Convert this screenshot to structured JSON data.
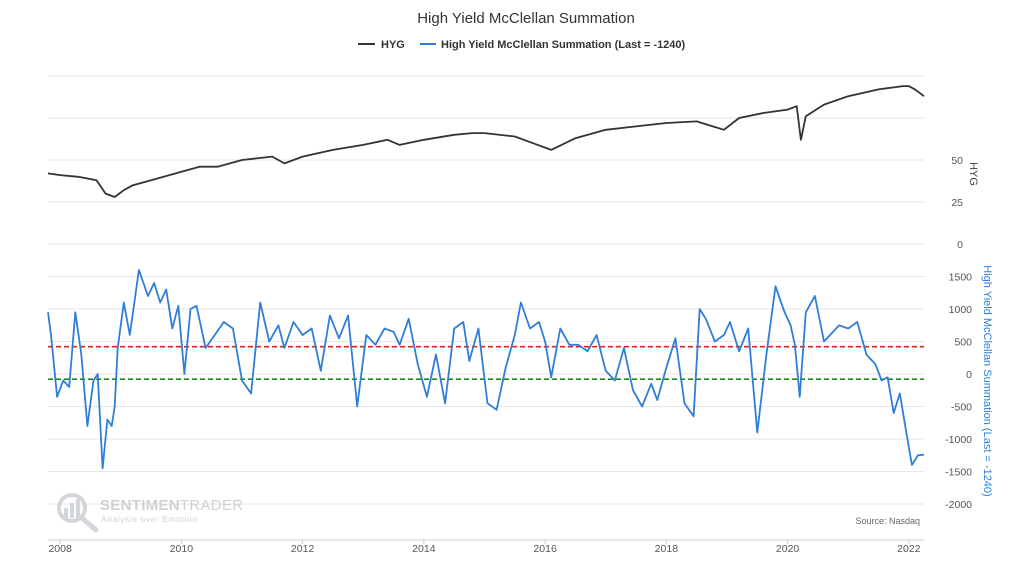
{
  "chart_data": {
    "type": "line",
    "title": "High Yield McClellan Summation",
    "source": "Source: Nasdaq",
    "watermark": {
      "brand_a": "SENTIMEN",
      "brand_b": "TRADER",
      "tagline": "Analysis over Emotion"
    },
    "x_range": [
      2007.8,
      2022.25
    ],
    "x_ticks": [
      {
        "value": 2008,
        "label": "2008"
      },
      {
        "value": 2010,
        "label": "2010"
      },
      {
        "value": 2012,
        "label": "2012"
      },
      {
        "value": 2014,
        "label": "2014"
      },
      {
        "value": 2016,
        "label": "2016"
      },
      {
        "value": 2018,
        "label": "2018"
      },
      {
        "value": 2020,
        "label": "2020"
      },
      {
        "value": 2022,
        "label": "2022"
      }
    ],
    "upper_axis": {
      "title": "HYG",
      "ticks": [
        {
          "value": 0,
          "label": "0"
        },
        {
          "value": 25,
          "label": "25"
        },
        {
          "value": 50,
          "label": "50"
        }
      ],
      "color": "#444444"
    },
    "lower_axis": {
      "title": "High Yield McClellan Summation (Last = -1240)",
      "ticks": [
        {
          "value": 1500,
          "label": "1500"
        },
        {
          "value": 1000,
          "label": "1000"
        },
        {
          "value": 500,
          "label": "500"
        },
        {
          "value": 0,
          "label": "0"
        },
        {
          "value": -500,
          "label": "-500"
        },
        {
          "value": -1000,
          "label": "-1000"
        },
        {
          "value": -1500,
          "label": "-1500"
        },
        {
          "value": -2000,
          "label": "-2000"
        }
      ],
      "color": "#2f7ed8"
    },
    "reference_lines": [
      {
        "value": 420,
        "color": "#e02020",
        "style": "dashed"
      },
      {
        "value": -80,
        "color": "#1a8a1a",
        "style": "dashed"
      }
    ],
    "series": [
      {
        "name": "HYG",
        "color": "#333333",
        "axis": "upper",
        "x": [
          2007.8,
          2008.0,
          2008.3,
          2008.6,
          2008.75,
          2008.9,
          2009.05,
          2009.2,
          2009.5,
          2010.0,
          2010.3,
          2010.6,
          2011.0,
          2011.5,
          2011.7,
          2012.0,
          2012.5,
          2013.0,
          2013.4,
          2013.6,
          2014.0,
          2014.5,
          2014.8,
          2015.0,
          2015.5,
          2015.8,
          2016.1,
          2016.5,
          2017.0,
          2017.5,
          2018.0,
          2018.5,
          2018.95,
          2019.2,
          2019.6,
          2020.0,
          2020.15,
          2020.22,
          2020.3,
          2020.6,
          2021.0,
          2021.5,
          2021.9,
          2022.0,
          2022.1,
          2022.25
        ],
        "values": [
          42,
          41,
          40,
          38,
          30,
          28,
          32,
          35,
          38,
          43,
          46,
          46,
          50,
          52,
          48,
          52,
          56,
          59,
          62,
          59,
          62,
          65,
          66,
          66,
          64,
          60,
          56,
          63,
          68,
          70,
          72,
          73,
          68,
          75,
          78,
          80,
          82,
          62,
          76,
          83,
          88,
          92,
          94,
          94,
          92,
          88
        ]
      },
      {
        "name": "High Yield McClellan Summation (Last = -1240)",
        "color": "#2f7ed8",
        "axis": "lower",
        "x": [
          2007.8,
          2007.85,
          2007.95,
          2008.05,
          2008.15,
          2008.25,
          2008.35,
          2008.45,
          2008.55,
          2008.62,
          2008.7,
          2008.78,
          2008.85,
          2008.9,
          2008.95,
          2009.05,
          2009.15,
          2009.3,
          2009.45,
          2009.55,
          2009.65,
          2009.75,
          2009.85,
          2009.95,
          2010.05,
          2010.15,
          2010.25,
          2010.4,
          2010.55,
          2010.7,
          2010.85,
          2011.0,
          2011.15,
          2011.3,
          2011.45,
          2011.6,
          2011.7,
          2011.85,
          2012.0,
          2012.15,
          2012.3,
          2012.45,
          2012.6,
          2012.75,
          2012.9,
          2013.05,
          2013.2,
          2013.35,
          2013.5,
          2013.6,
          2013.75,
          2013.9,
          2014.05,
          2014.2,
          2014.35,
          2014.5,
          2014.65,
          2014.75,
          2014.9,
          2015.05,
          2015.2,
          2015.35,
          2015.5,
          2015.6,
          2015.75,
          2015.9,
          2016.0,
          2016.1,
          2016.25,
          2016.4,
          2016.55,
          2016.7,
          2016.85,
          2017.0,
          2017.15,
          2017.3,
          2017.45,
          2017.6,
          2017.75,
          2017.85,
          2018.0,
          2018.15,
          2018.3,
          2018.45,
          2018.55,
          2018.65,
          2018.8,
          2018.95,
          2019.05,
          2019.2,
          2019.35,
          2019.5,
          2019.65,
          2019.8,
          2019.95,
          2020.05,
          2020.12,
          2020.2,
          2020.3,
          2020.45,
          2020.6,
          2020.75,
          2020.85,
          2021.0,
          2021.15,
          2021.3,
          2021.45,
          2021.55,
          2021.65,
          2021.75,
          2021.85,
          2021.95,
          2022.05,
          2022.15,
          2022.25
        ],
        "values": [
          950,
          600,
          -350,
          -100,
          -200,
          950,
          300,
          -800,
          -100,
          0,
          -1450,
          -700,
          -800,
          -500,
          400,
          1100,
          600,
          1600,
          1200,
          1400,
          1100,
          1300,
          700,
          1050,
          0,
          1000,
          1050,
          400,
          600,
          800,
          700,
          -100,
          -300,
          1100,
          500,
          750,
          400,
          800,
          600,
          700,
          50,
          900,
          550,
          900,
          -500,
          600,
          450,
          700,
          650,
          450,
          850,
          150,
          -350,
          300,
          -450,
          700,
          800,
          200,
          700,
          -450,
          -550,
          100,
          600,
          1100,
          700,
          800,
          500,
          -50,
          700,
          450,
          450,
          350,
          600,
          50,
          -100,
          400,
          -250,
          -500,
          -150,
          -400,
          100,
          550,
          -450,
          -650,
          1000,
          850,
          500,
          600,
          800,
          350,
          700,
          -900,
          300,
          1350,
          950,
          750,
          450,
          -350,
          950,
          1200,
          500,
          650,
          750,
          700,
          800,
          300,
          150,
          -100,
          -50,
          -600,
          -300,
          -850,
          -1400,
          -1250,
          -1240
        ]
      }
    ]
  }
}
